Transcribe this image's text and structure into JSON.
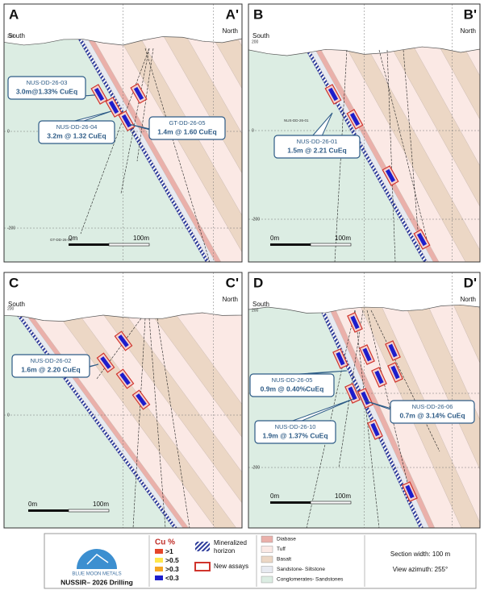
{
  "panels": [
    {
      "letter": "A",
      "prime": "A'",
      "south": "South",
      "north": "North",
      "elevations": [
        "200",
        "0",
        "-200"
      ],
      "scale": [
        "0m",
        "100m"
      ],
      "callouts": [
        [
          "NUS-DD-26-03",
          "3.0m@1.33% CuEq"
        ],
        [
          "NUS-DD-26-04",
          "3.2m @ 1.32 CuEq"
        ],
        [
          "GT-DD-26-05",
          "1.4m @ 1.60 CuEq"
        ]
      ],
      "holes": [
        "GT-DD-26-05"
      ]
    },
    {
      "letter": "B",
      "prime": "B'",
      "south": "South",
      "north": "North",
      "elevations": [
        "200",
        "0",
        "-200"
      ],
      "scale": [
        "0m",
        "100m"
      ],
      "callouts": [
        [
          "NUS-DD-26-01",
          "1.5m @ 2.21 CuEq"
        ]
      ],
      "holes": [
        "NUS-DD-26-01"
      ]
    },
    {
      "letter": "C",
      "prime": "C'",
      "south": "South",
      "north": "North",
      "elevations": [
        "200",
        "0"
      ],
      "scale": [
        "0m",
        "100m"
      ],
      "callouts": [
        [
          "NUS-DD-26-02",
          "1.6m @ 2.20 CuEq"
        ]
      ]
    },
    {
      "letter": "D",
      "prime": "D'",
      "south": "South",
      "north": "North",
      "elevations": [
        "200",
        "0",
        "-200"
      ],
      "scale": [
        "0m",
        "100m"
      ],
      "callouts": [
        [
          "NUS-DD-26-05",
          "0.9m @ 0.40%CuEq"
        ],
        [
          "NUS-DD-26-06",
          "0.7m @ 3.14% CuEq"
        ],
        [
          "NUS-DD-26-10",
          "1.9m @ 1.37% CuEq"
        ]
      ]
    }
  ],
  "legend": {
    "company": "BLUE MOON METALS",
    "project": "NUSSIR– 2026 Drilling",
    "cu_title": "Cu %",
    "cu_grades": [
      ">1",
      ">0.5",
      ">0.3",
      "<0.3"
    ],
    "mineralized": [
      "Mineralized",
      "horizon"
    ],
    "new_assays": "New assays",
    "lithology": [
      "Diabase",
      "Tuff",
      "Basalt",
      "Sandstone- Siltstone",
      "Conglomerates- Sandstones"
    ],
    "section_width": "Section width: 100 m",
    "azimuth": "View azimuth: 255°"
  }
}
